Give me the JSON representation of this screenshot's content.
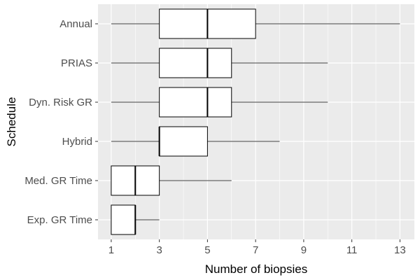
{
  "chart_data": {
    "type": "boxplot",
    "orientation": "horizontal",
    "xlabel": "Number of biopsies",
    "ylabel": "Schedule",
    "xlim": [
      0.45,
      13.6
    ],
    "x_ticks": [
      1,
      3,
      5,
      7,
      9,
      11,
      13
    ],
    "x_minor_ticks": [
      2,
      4,
      6,
      8,
      10,
      12
    ],
    "grid": true,
    "colors": {
      "panel_background": "#ebebeb",
      "grid_line": "#ffffff",
      "box_fill": "#ffffff",
      "box_stroke": "#000000"
    },
    "categories": [
      "Annual",
      "PRIAS",
      "Dyn. Risk GR",
      "Hybrid",
      "Med. GR Time",
      "Exp. GR Time"
    ],
    "series": [
      {
        "category": "Annual",
        "whisker_low": 1,
        "q1": 3,
        "median": 5,
        "q3": 7,
        "whisker_high": 13
      },
      {
        "category": "PRIAS",
        "whisker_low": 1,
        "q1": 3,
        "median": 5,
        "q3": 6,
        "whisker_high": 10
      },
      {
        "category": "Dyn. Risk GR",
        "whisker_low": 1,
        "q1": 3,
        "median": 5,
        "q3": 6,
        "whisker_high": 10
      },
      {
        "category": "Hybrid",
        "whisker_low": 1,
        "q1": 3,
        "median": 3,
        "q3": 5,
        "whisker_high": 8
      },
      {
        "category": "Med. GR Time",
        "whisker_low": 1,
        "q1": 1,
        "median": 2,
        "q3": 3,
        "whisker_high": 6
      },
      {
        "category": "Exp. GR Time",
        "whisker_low": 1,
        "q1": 1,
        "median": 2,
        "q3": 2,
        "whisker_high": 3
      }
    ]
  }
}
